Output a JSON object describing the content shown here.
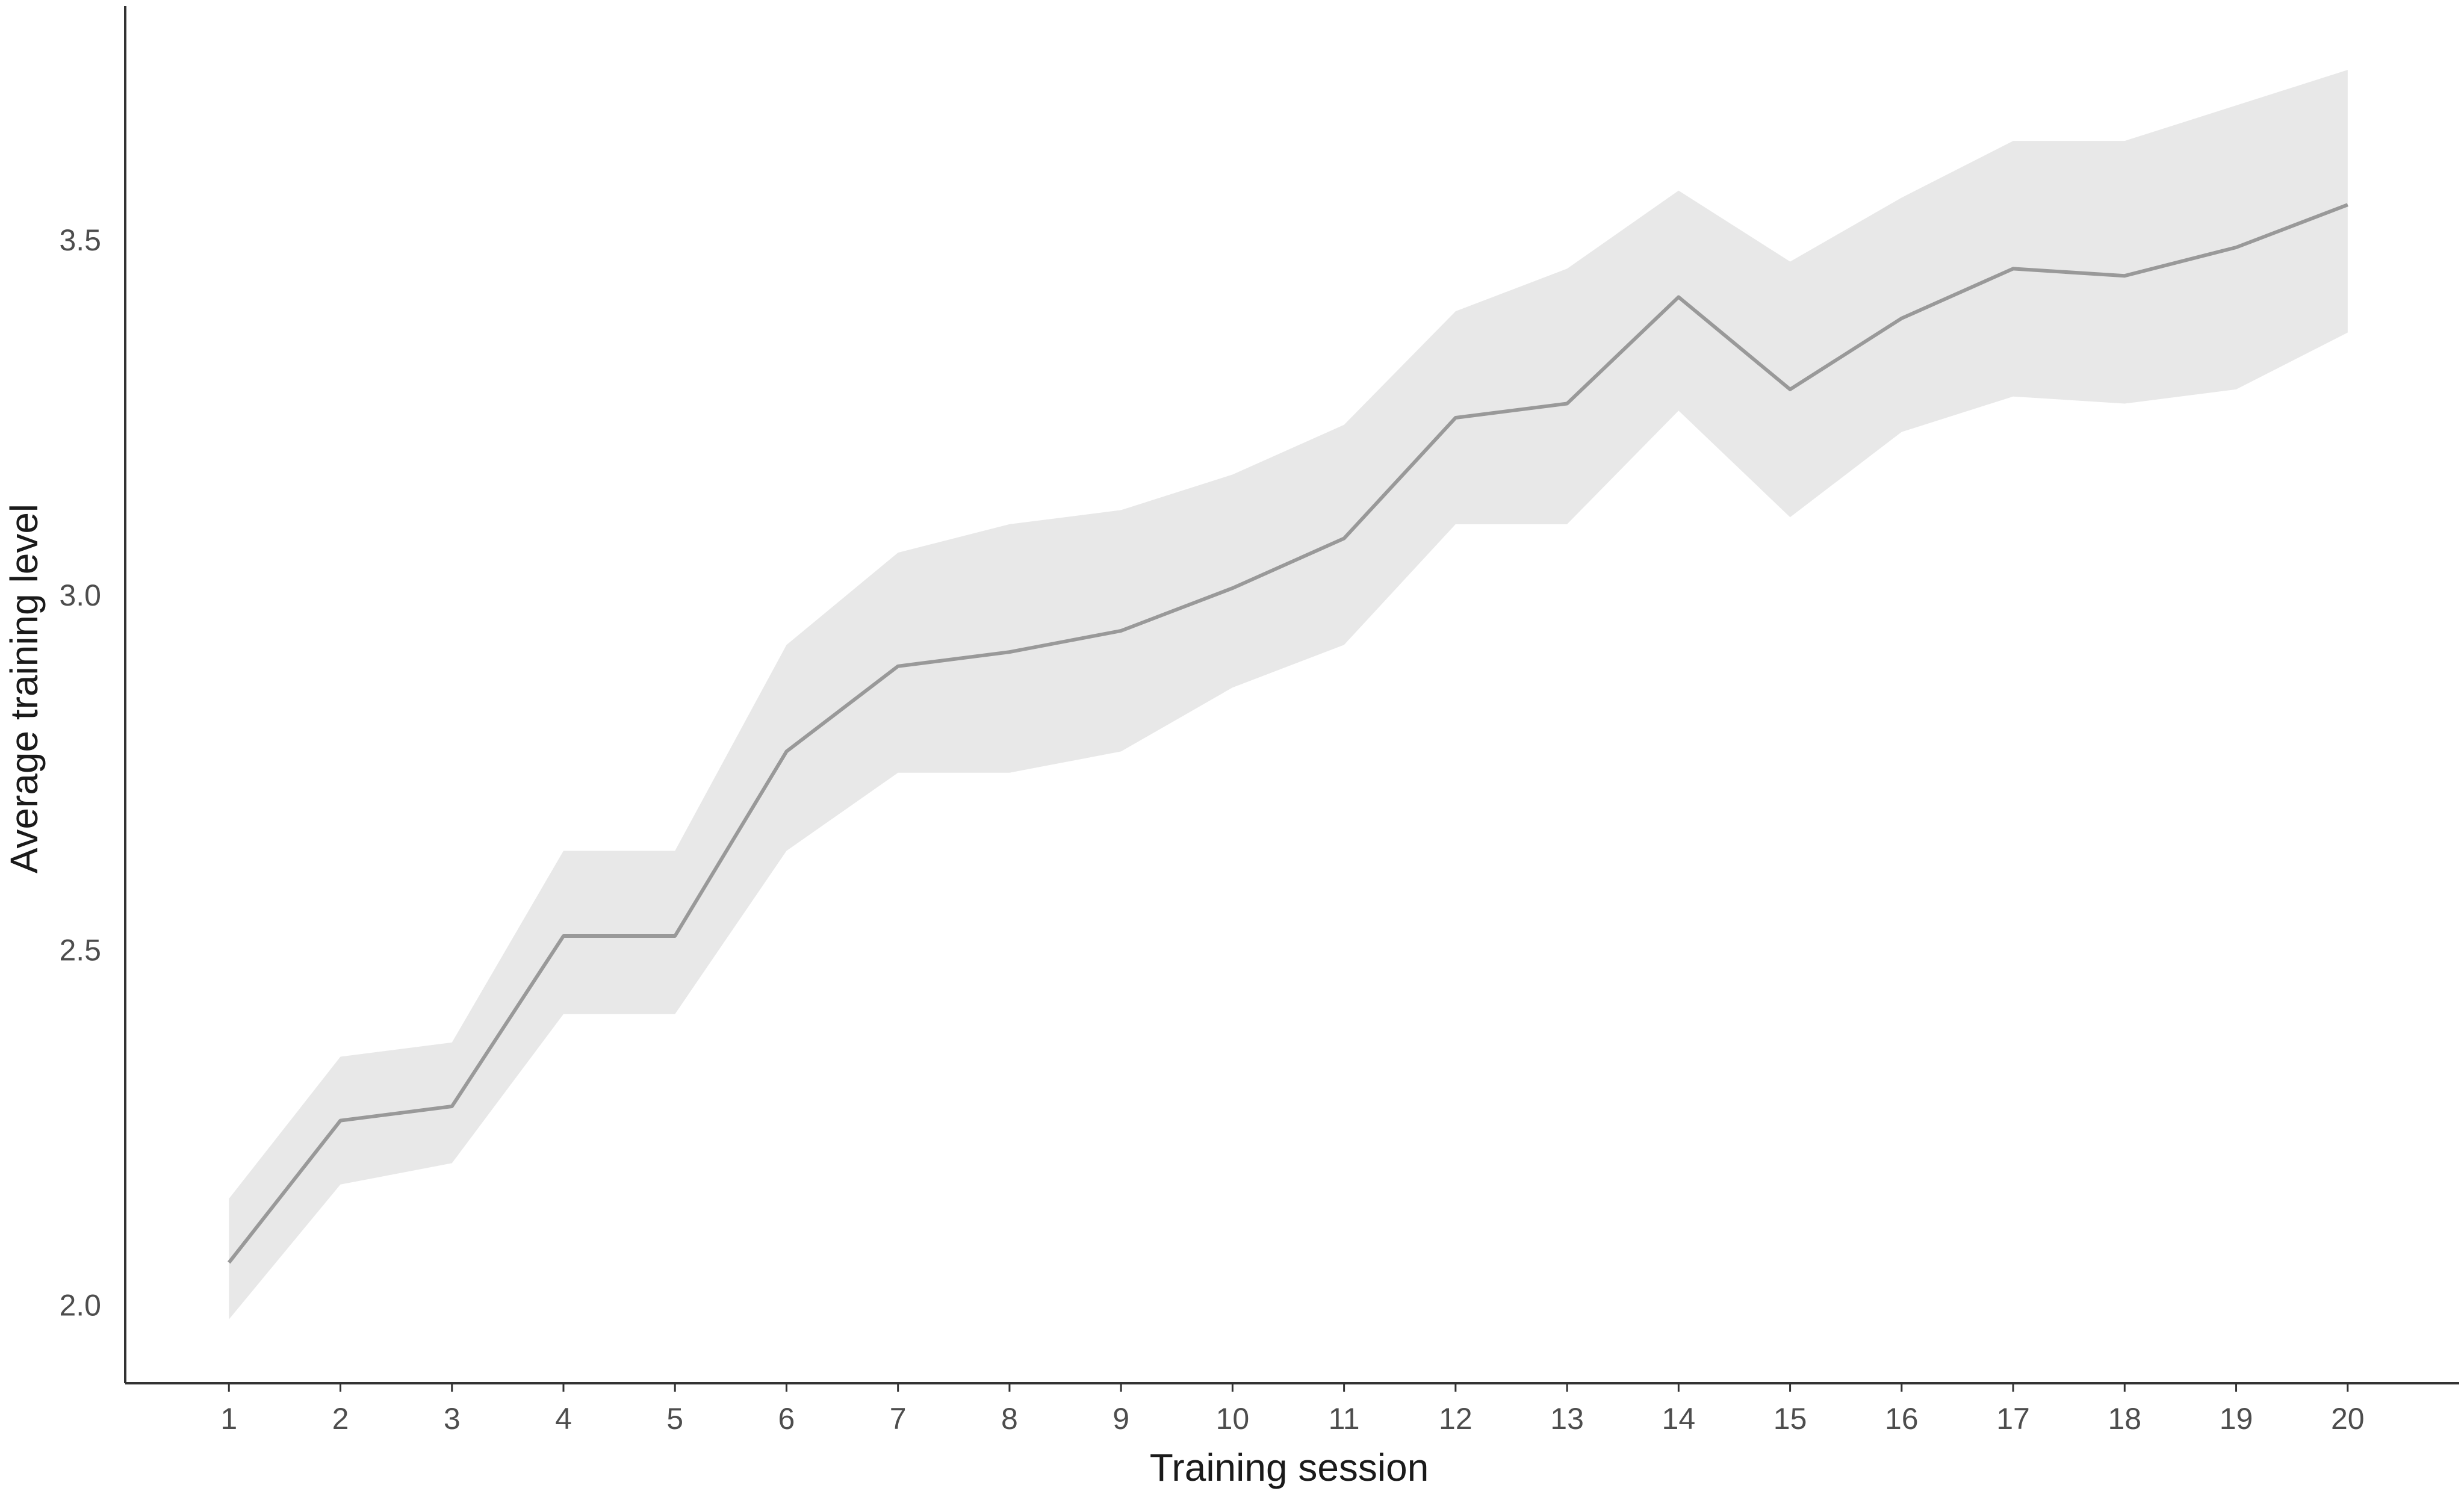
{
  "chart_data": {
    "type": "line",
    "title": "",
    "xlabel": "Training session",
    "ylabel": "Average training level",
    "x": [
      1,
      2,
      3,
      4,
      5,
      6,
      7,
      8,
      9,
      10,
      11,
      12,
      13,
      14,
      15,
      16,
      17,
      18,
      19,
      20
    ],
    "x_tick_labels": [
      "1",
      "2",
      "3",
      "4",
      "5",
      "6",
      "7",
      "8",
      "9",
      "10",
      "11",
      "12",
      "13",
      "14",
      "15",
      "16",
      "17",
      "18",
      "19",
      "20"
    ],
    "y_ticks": [
      2.0,
      2.5,
      3.0,
      3.5
    ],
    "y_tick_labels": [
      "2.0",
      "2.5",
      "3.0",
      "3.5"
    ],
    "xlim": [
      0.07,
      21.0
    ],
    "ylim": [
      1.89,
      3.83
    ],
    "series": [
      {
        "values": [
          2.06,
          2.26,
          2.28,
          2.52,
          2.52,
          2.78,
          2.9,
          2.92,
          2.95,
          3.01,
          3.08,
          3.25,
          3.27,
          3.42,
          3.29,
          3.39,
          3.46,
          3.45,
          3.49,
          3.55
        ],
        "lower": [
          1.98,
          2.17,
          2.2,
          2.41,
          2.41,
          2.64,
          2.75,
          2.75,
          2.78,
          2.87,
          2.93,
          3.1,
          3.1,
          3.26,
          3.11,
          3.23,
          3.28,
          3.27,
          3.29,
          3.37
        ],
        "upper": [
          2.15,
          2.35,
          2.37,
          2.64,
          2.64,
          2.93,
          3.06,
          3.1,
          3.12,
          3.17,
          3.24,
          3.4,
          3.46,
          3.57,
          3.47,
          3.56,
          3.64,
          3.64,
          3.69,
          3.74
        ],
        "line_color": "#999999",
        "band_color": "#e8e8e8"
      }
    ],
    "grid": false,
    "legend": "none",
    "axis_color": "#333333"
  }
}
